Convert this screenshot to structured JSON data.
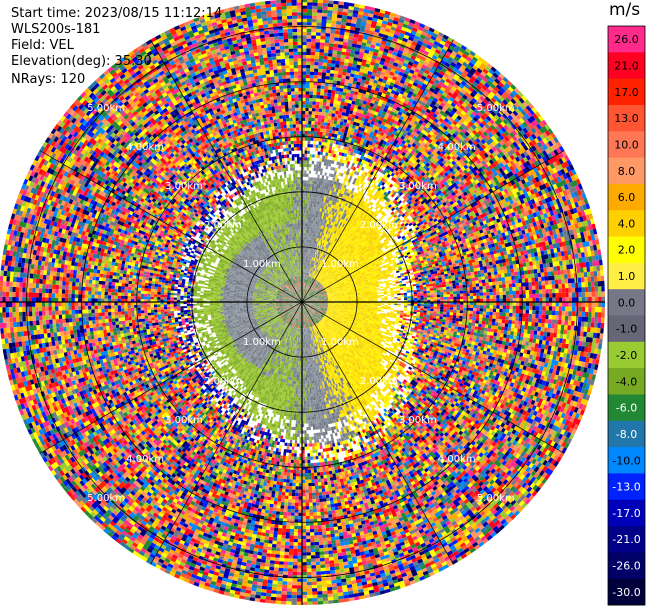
{
  "header": {
    "start_time": "Start time: 2023/08/15 11:12:14",
    "instrument": "WLS200s-181",
    "field": "Field: VEL",
    "elevation": "Elevation(deg): 35.30",
    "nrays": "NRays: 120"
  },
  "colorbar": {
    "unit": "m/s",
    "levels": [
      {
        "label": "26.0",
        "color": "#ff2a8a"
      },
      {
        "label": "21.0",
        "color": "#ff0022"
      },
      {
        "label": "17.0",
        "color": "#ff2200"
      },
      {
        "label": "13.0",
        "color": "#ff5533"
      },
      {
        "label": "10.0",
        "color": "#ff7755"
      },
      {
        "label": "8.0",
        "color": "#ff9966"
      },
      {
        "label": "6.0",
        "color": "#ffaa00"
      },
      {
        "label": "4.0",
        "color": "#ffd000"
      },
      {
        "label": "2.0",
        "color": "#ffff00"
      },
      {
        "label": "1.0",
        "color": "#ffee44"
      },
      {
        "label": "0.0",
        "color": "#777788"
      },
      {
        "label": "-1.0",
        "color": "#666677"
      },
      {
        "label": "-2.0",
        "color": "#99cc33"
      },
      {
        "label": "-4.0",
        "color": "#77aa22"
      },
      {
        "label": "-6.0",
        "color": "#228833"
      },
      {
        "label": "-8.0",
        "color": "#2277aa"
      },
      {
        "label": "-10.0",
        "color": "#0088ff"
      },
      {
        "label": "-13.0",
        "color": "#0022ff"
      },
      {
        "label": "-17.0",
        "color": "#0000bb"
      },
      {
        "label": "-21.0",
        "color": "#000088"
      },
      {
        "label": "-26.0",
        "color": "#000066"
      },
      {
        "label": "-30.0",
        "color": "#00003a"
      }
    ]
  },
  "chart_data": {
    "type": "heatmap",
    "subtype": "ppi-polar",
    "field": "VEL",
    "unit": "m/s",
    "nrays": 120,
    "ring_labels": [
      {
        "label": "1.00km",
        "range_km": 1.0
      },
      {
        "label": "2.00km",
        "range_km": 2.0
      },
      {
        "label": "3.00km",
        "range_km": 3.0
      },
      {
        "label": "4.00km",
        "range_km": 4.0
      },
      {
        "label": "5.00km",
        "range_km": 5.0
      }
    ],
    "max_range_km": 5.5,
    "spoke_angles_deg": [
      0,
      30,
      60,
      90,
      120,
      150,
      180,
      210,
      240,
      270,
      300,
      330
    ],
    "pattern": "coherent near-field signal: grey/green (negative) to the west, yellow (positive) to the east within about 2.5 km; noise beyond"
  }
}
